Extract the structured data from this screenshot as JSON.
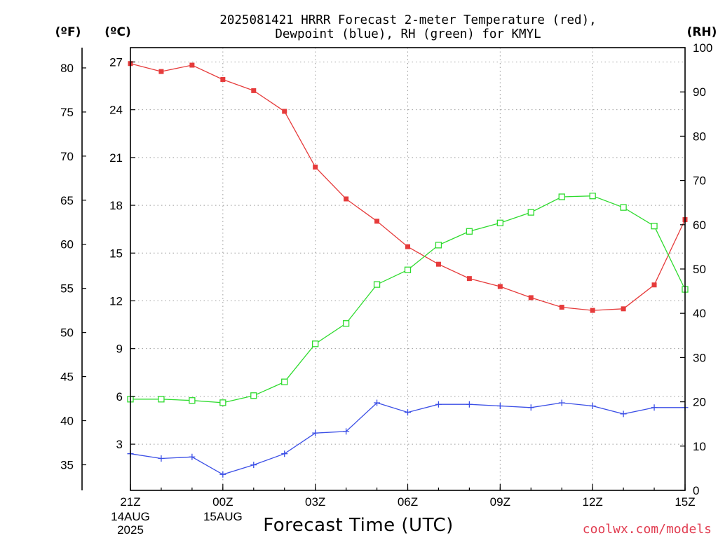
{
  "chart_data": {
    "type": "line",
    "title": [
      "2025081421 HRRR Forecast 2-meter Temperature (red),",
      "Dewpoint (blue), RH (green) for KMYL"
    ],
    "xlabel": "Forecast Time (UTC)",
    "x": [
      "21Z",
      "22Z",
      "23Z",
      "00Z",
      "01Z",
      "02Z",
      "03Z",
      "04Z",
      "05Z",
      "06Z",
      "07Z",
      "08Z",
      "09Z",
      "10Z",
      "11Z",
      "12Z",
      "13Z",
      "14Z",
      "15Z"
    ],
    "x_ticks": [
      {
        "label": "21Z",
        "date": [
          "14AUG",
          "2025"
        ]
      },
      {
        "label": "00Z",
        "date": [
          "15AUG"
        ]
      },
      {
        "label": "03Z",
        "date": []
      },
      {
        "label": "06Z",
        "date": []
      },
      {
        "label": "09Z",
        "date": []
      },
      {
        "label": "12Z",
        "date": []
      },
      {
        "label": "15Z",
        "date": []
      }
    ],
    "y_axes": [
      {
        "label": "(ºC)",
        "ylim": [
          0.1,
          27.9
        ],
        "ticks": [
          3,
          6,
          9,
          12,
          15,
          18,
          21,
          24,
          27
        ]
      },
      {
        "label": "(ºF)",
        "ylim": [
          32.1,
          82.3
        ],
        "ticks": [
          35,
          40,
          45,
          50,
          55,
          60,
          65,
          70,
          75,
          80
        ]
      },
      {
        "label": "(RH)",
        "ylim": [
          0,
          100
        ],
        "ticks": [
          0,
          10,
          20,
          30,
          40,
          50,
          60,
          70,
          80,
          90,
          100
        ]
      }
    ],
    "grid": true,
    "series": [
      {
        "y_axis": 0,
        "color": "#e63b3b",
        "marker": "filled-square",
        "values": [
          26.9,
          26.4,
          26.8,
          25.9,
          25.2,
          23.9,
          20.4,
          18.4,
          17.0,
          15.4,
          14.3,
          13.4,
          12.9,
          12.2,
          11.6,
          11.4,
          11.5,
          13.0,
          17.1
        ]
      },
      {
        "y_axis": 0,
        "color": "#3b4fe6",
        "marker": "plus",
        "values": [
          2.4,
          2.1,
          2.2,
          1.1,
          1.7,
          2.4,
          3.7,
          3.8,
          5.6,
          5.0,
          5.5,
          5.5,
          5.4,
          5.3,
          5.6,
          5.4,
          4.9,
          5.3,
          5.3
        ]
      },
      {
        "y_axis": 2,
        "color": "#2edb2e",
        "marker": "open-square",
        "values": [
          20.6,
          20.6,
          20.3,
          19.8,
          21.4,
          24.5,
          33.1,
          37.7,
          46.5,
          49.8,
          55.4,
          58.5,
          60.4,
          62.8,
          66.3,
          66.5,
          63.9,
          59.7,
          45.4
        ]
      }
    ]
  },
  "credit": "coolwx.com/models",
  "colors": {
    "credit": "#e13c50",
    "axes": "#000000",
    "grid": "#9c9c9c",
    "background": "#ffffff"
  }
}
